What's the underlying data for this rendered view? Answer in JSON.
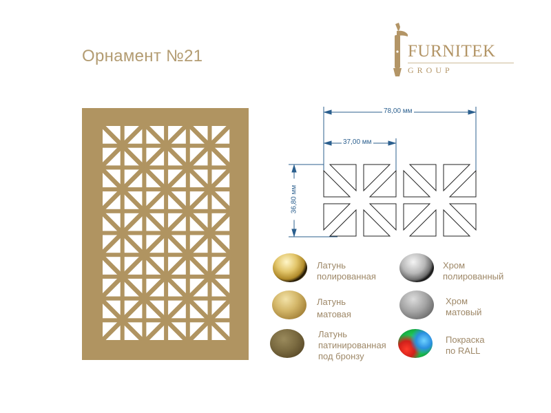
{
  "title": "Орнамент №21",
  "logo": {
    "name": "FURNITEK",
    "sub": "GROUP"
  },
  "colors": {
    "panel": "#b09461",
    "dimension": "#2b5f8e",
    "text": "#9e8868"
  },
  "panel_pattern": {
    "columns": 6,
    "rows": 10
  },
  "dimensions": {
    "total_width": "78,00 мм",
    "module_width": "37,00 мм",
    "height": "36,80 мм"
  },
  "finishes": [
    {
      "label": "Латунь\nполированная",
      "swatch": "polished-brass"
    },
    {
      "label": "Латунь\nматовая",
      "swatch": "matte-brass"
    },
    {
      "label": "Латунь\nпатинированная\nпод бронзу",
      "swatch": "patinated-bronze"
    },
    {
      "label": "Хром\nполированный",
      "swatch": "polished-chrome"
    },
    {
      "label": "Хром\nматовый",
      "swatch": "matte-chrome"
    },
    {
      "label": "Покраска\nпо RALL",
      "swatch": "ral-paint"
    }
  ]
}
